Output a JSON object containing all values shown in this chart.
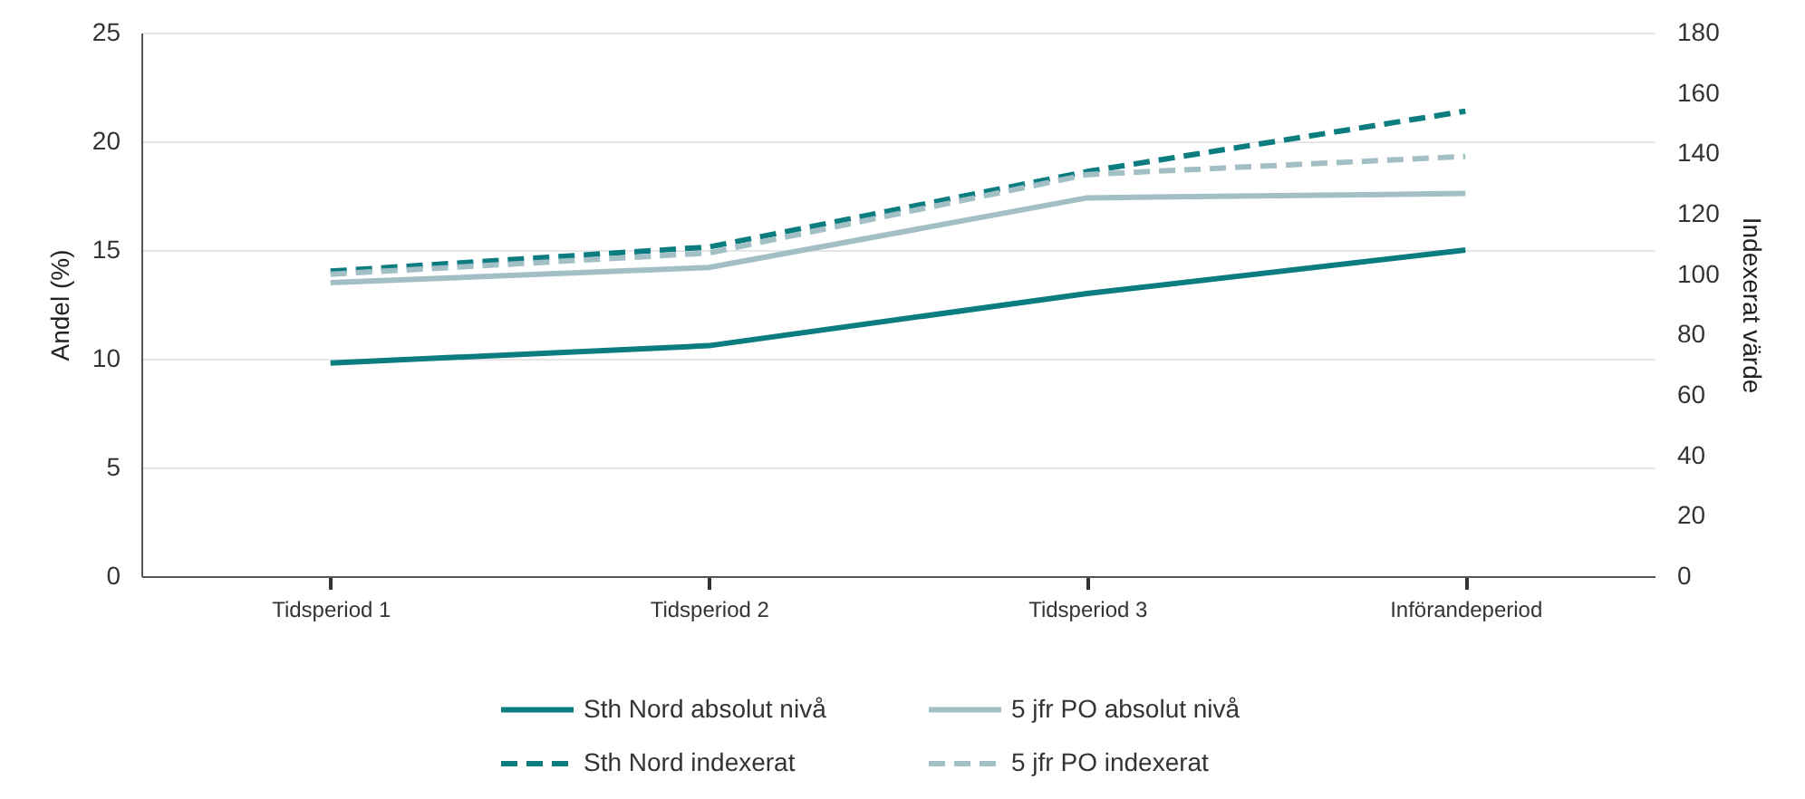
{
  "chart_data": {
    "type": "line",
    "ylabel": "Andel (%)",
    "y2label": "Indexerat värde",
    "categories": [
      "Tidsperiod 1",
      "Tidsperiod 2",
      "Tidsperiod 3",
      "Införandeperiod"
    ],
    "series": [
      {
        "name": "Sth Nord absolut nivå",
        "color": "#0b7c80",
        "line_style": "solid",
        "values": [
          9.8,
          10.6,
          13.0,
          15.0
        ]
      },
      {
        "name": "5 jfr PO absolut nivå",
        "color": "#a2bfc6",
        "line_style": "solid",
        "values": [
          13.5,
          14.2,
          17.4,
          17.6
        ]
      },
      {
        "name": "Sth Nord indexerat",
        "color": "#0b7c80",
        "line_style": "dashed",
        "axis": "y2",
        "values": [
          101,
          109,
          134,
          154
        ]
      },
      {
        "name": "5 jfr PO indexerat",
        "color": "#a2bfc6",
        "line_style": "dashed",
        "axis": "y2",
        "values": [
          100,
          107,
          133,
          139
        ]
      }
    ],
    "ylim": [
      0,
      25
    ],
    "yticks": [
      0,
      5,
      10,
      15,
      20,
      25
    ],
    "y2lim": [
      0,
      180
    ],
    "y2ticks": [
      0,
      20,
      40,
      60,
      80,
      100,
      120,
      140,
      160,
      180
    ],
    "grid": "y",
    "legend": "bottom"
  }
}
